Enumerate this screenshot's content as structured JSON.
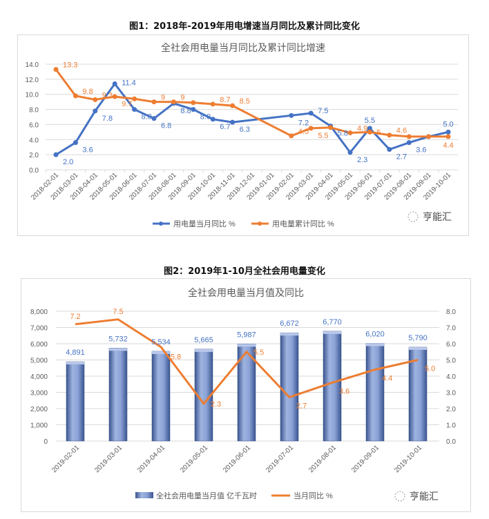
{
  "figure1_caption": "图1：2018年-2019年用电增速当月同比及累计同比变化",
  "figure2_caption": "图2：2019年1-10月全社会用电量变化",
  "watermark": "亨能汇",
  "colors": {
    "blue": "#4472C4",
    "orange": "#ED7D31",
    "bar": "#7F9AD0",
    "grid": "#d9d9d9",
    "axis_text": "#595959"
  },
  "chart_data": [
    {
      "type": "line",
      "title": "全社会用电量当月同比及累计同比增速",
      "ylim": [
        0,
        14
      ],
      "yticks": [
        "0.0",
        "2.0",
        "4.0",
        "6.0",
        "8.0",
        "10.0",
        "12.0",
        "14.0"
      ],
      "categories": [
        "2018-02-01",
        "2018-03-01",
        "2018-04-01",
        "2018-05-01",
        "2018-06-01",
        "2018-07-01",
        "2018-08-01",
        "2018-09-01",
        "2018-10-01",
        "2018-11-01",
        "2018-12-01",
        "2019-01-01",
        "2019-02-01",
        "2019-03-01",
        "2019-04-01",
        "2019-05-01",
        "2019-06-01",
        "2019-07-01",
        "2019-08-01",
        "2019-09-01",
        "2019-10-01"
      ],
      "legend_position": "bottom",
      "series": [
        {
          "name": "用电量当月同比 %",
          "color": "blue",
          "values": [
            2.0,
            3.6,
            7.8,
            11.4,
            8.0,
            6.8,
            8.8,
            8.0,
            6.7,
            6.3,
            null,
            null,
            7.2,
            7.5,
            5.8,
            2.3,
            5.5,
            2.7,
            3.6,
            4.4,
            5.0
          ],
          "labels": [
            "2.0",
            "3.6",
            "7.8",
            "11.4",
            "8.0",
            "6.8",
            "8.8",
            "8.0",
            "6.7",
            "6.3",
            null,
            null,
            "7.2",
            "7.5",
            "5.8",
            "2.3",
            "5.5",
            "2.7",
            "3.6",
            null,
            "5.0"
          ]
        },
        {
          "name": "用电量累计同比 %",
          "color": "orange",
          "values": [
            13.3,
            9.8,
            9.3,
            9.7,
            9.4,
            9.0,
            9.0,
            8.9,
            8.7,
            8.5,
            null,
            null,
            4.5,
            5.5,
            5.6,
            4.9,
            5.0,
            4.6,
            4.4,
            4.4,
            4.4
          ],
          "labels": [
            "13.3",
            "9.8",
            "9.3",
            "9.7",
            null,
            "9",
            "9",
            null,
            "8.7",
            "8.5",
            null,
            null,
            "4.5",
            "5.5",
            null,
            "4.9",
            "5",
            "4.6",
            null,
            null,
            "4.4"
          ]
        }
      ]
    },
    {
      "type": "bar",
      "title": "全社会用电量当月值及同比",
      "ylim": [
        0,
        8000
      ],
      "y2lim": [
        0,
        8
      ],
      "yticks": [
        "0",
        "1,000",
        "2,000",
        "3,000",
        "4,000",
        "5,000",
        "6,000",
        "7,000",
        "8,000"
      ],
      "y2ticks": [
        "0.0",
        "1.0",
        "2.0",
        "3.0",
        "4.0",
        "5.0",
        "6.0",
        "7.0",
        "8.0"
      ],
      "categories": [
        "2019-02-01",
        "2019-03-01",
        "2019-04-01",
        "2019-05-01",
        "2019-06-01",
        "2019-07-01",
        "2019-08-01",
        "2019-09-01",
        "2019-10-01"
      ],
      "legend_position": "bottom",
      "series": [
        {
          "name": "全社会用电量当月值 亿千瓦时",
          "type": "bar",
          "axis": "left",
          "values": [
            4891,
            5732,
            5534,
            5665,
            5987,
            6672,
            6770,
            6020,
            5790
          ],
          "labels": [
            "4,891",
            "5,732",
            "5,534",
            "5,665",
            "5,987",
            "6,672",
            "6,770",
            "6,020",
            "5,790"
          ]
        },
        {
          "name": "当月同比 %",
          "type": "line",
          "axis": "right",
          "values": [
            7.2,
            7.5,
            5.8,
            2.3,
            5.5,
            2.7,
            3.6,
            4.4,
            5.0
          ],
          "labels": [
            "7.2",
            "7.5",
            "5.8",
            "2.3",
            "5.5",
            "2.7",
            "3.6",
            "4.4",
            "5.0"
          ]
        }
      ]
    }
  ]
}
